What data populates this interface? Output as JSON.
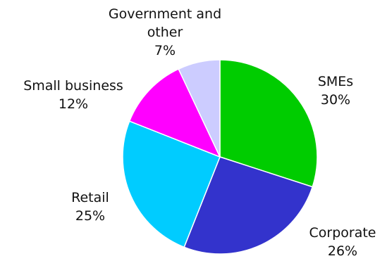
{
  "chart_data": {
    "type": "pie",
    "title": "",
    "slices": [
      {
        "label": "SMEs",
        "value": 30,
        "value_label": "30%",
        "color": "#00cc00"
      },
      {
        "label": "Corporate",
        "value": 26,
        "value_label": "26%",
        "color": "#3333cc"
      },
      {
        "label": "Retail",
        "value": 25,
        "value_label": "25%",
        "color": "#00ccff"
      },
      {
        "label": "Small business",
        "value": 12,
        "value_label": "12%",
        "color": "#ff00ff"
      },
      {
        "label": "Government and other",
        "label_lines": [
          "Government and",
          "other"
        ],
        "value": 7,
        "value_label": "7%",
        "color": "#ccccff"
      }
    ],
    "start": "12 o'clock",
    "direction": "clockwise",
    "legend": "none"
  }
}
